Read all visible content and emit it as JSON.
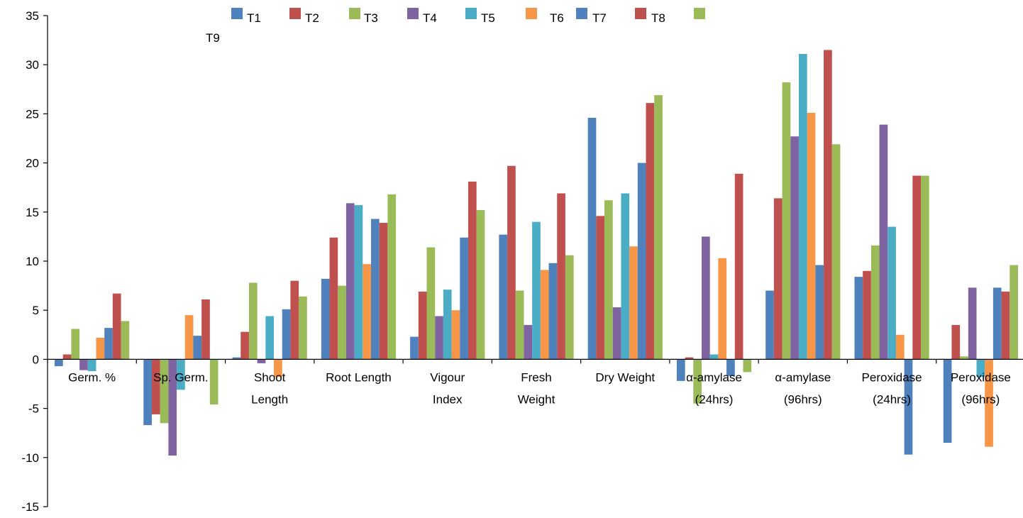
{
  "chart_data": {
    "type": "bar",
    "title": "",
    "xlabel": "",
    "ylabel": "",
    "ylim": [
      -15,
      35
    ],
    "yticks": [
      -15,
      -10,
      -5,
      0,
      5,
      10,
      15,
      20,
      25,
      30,
      35
    ],
    "grid": false,
    "legend_position": "top",
    "categories": [
      [
        "Germ. %"
      ],
      [
        "Sp. Germ."
      ],
      [
        "Shoot",
        "Length"
      ],
      [
        "Root Length"
      ],
      [
        "Vigour",
        "Index"
      ],
      [
        "Fresh",
        "Weight"
      ],
      [
        "Dry Weight"
      ],
      [
        "α-amylase",
        "(24hrs)"
      ],
      [
        "α-amylase",
        "(96hrs)"
      ],
      [
        "Peroxidase",
        "(24hrs)"
      ],
      [
        "Peroxidase",
        "(96hrs)"
      ]
    ],
    "series": [
      {
        "name": "T1",
        "color": "#4F81BD",
        "values": [
          -0.7,
          -6.7,
          0.2,
          8.2,
          2.3,
          12.7,
          24.6,
          -2.2,
          7.0,
          8.4,
          -8.5
        ]
      },
      {
        "name": "T2",
        "color": "#C0504D",
        "values": [
          0.5,
          -5.6,
          2.8,
          12.4,
          6.9,
          19.7,
          14.6,
          0.2,
          16.4,
          9.0,
          3.5
        ]
      },
      {
        "name": "T3",
        "color": "#9BBB59",
        "values": [
          3.1,
          -6.5,
          7.8,
          7.5,
          11.4,
          7.0,
          16.2,
          -4.5,
          28.2,
          11.6,
          0.3
        ]
      },
      {
        "name": "T4",
        "color": "#8064A2",
        "values": [
          -1.1,
          -9.8,
          -0.4,
          15.9,
          4.4,
          3.5,
          5.3,
          12.5,
          22.7,
          23.9,
          7.3
        ]
      },
      {
        "name": "T5",
        "color": "#4BACC6",
        "values": [
          -1.2,
          -3.1,
          4.4,
          15.7,
          7.1,
          14.0,
          16.9,
          0.5,
          31.1,
          13.5,
          -1.8
        ]
      },
      {
        "name": "T6",
        "color": "#F79646",
        "values": [
          2.2,
          4.5,
          -1.8,
          9.7,
          5.0,
          9.1,
          11.5,
          10.3,
          25.1,
          2.5,
          -8.9
        ]
      },
      {
        "name": "T7",
        "color": "#4F81BD",
        "values": [
          3.2,
          2.4,
          5.1,
          14.3,
          12.4,
          9.8,
          20.0,
          -1.7,
          9.6,
          -9.7,
          7.3
        ]
      },
      {
        "name": "T8",
        "color": "#C0504D",
        "values": [
          6.7,
          6.1,
          8.0,
          13.9,
          18.1,
          16.9,
          26.1,
          18.9,
          31.5,
          18.7,
          6.9
        ]
      },
      {
        "name": "T9",
        "color": "#9BBB59",
        "values": [
          3.9,
          -4.6,
          6.4,
          16.8,
          15.2,
          10.6,
          26.9,
          -1.3,
          21.9,
          18.7,
          9.6
        ]
      }
    ]
  }
}
